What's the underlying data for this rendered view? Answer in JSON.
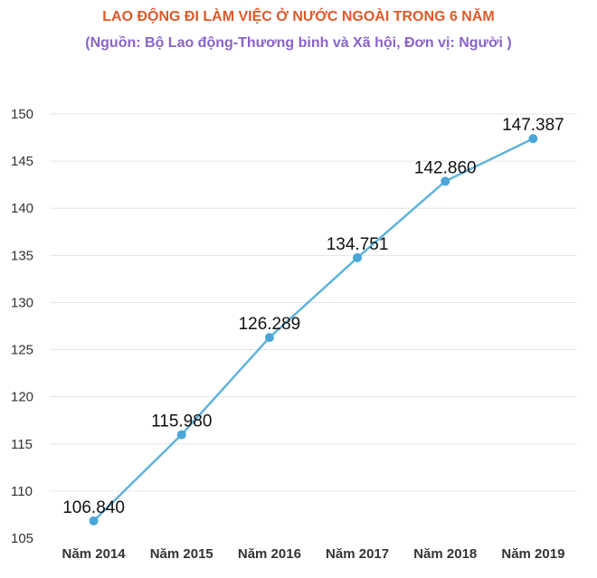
{
  "chart_data": {
    "type": "line",
    "title": "LAO ĐỘNG ĐI LÀM VIỆC Ở NƯỚC NGOÀI TRONG 6 NĂM",
    "subtitle": "(Nguồn: Bộ Lao động-Thương binh và Xã hội, Đơn vị: Người )",
    "categories": [
      "Năm 2014",
      "Năm 2015",
      "Năm 2016",
      "Năm 2017",
      "Năm 2018",
      "Năm 2019"
    ],
    "values": [
      106840,
      115980,
      126289,
      134751,
      142860,
      147387
    ],
    "data_labels": [
      "106.840",
      "115.980",
      "126.289",
      "134.751",
      "142.860",
      "147.387"
    ],
    "y_ticks": [
      "105",
      "110",
      "115",
      "120",
      "125",
      "130",
      "135",
      "140",
      "145",
      "150"
    ],
    "ylim": [
      105,
      150
    ],
    "y_scale_divisor": 1000,
    "grid": true,
    "colors": {
      "line": "#5fb3dc",
      "marker": "#4aa6d8",
      "grid": "#e6e6e6",
      "title": "#e0592a",
      "subtitle": "#8a63c9"
    }
  }
}
